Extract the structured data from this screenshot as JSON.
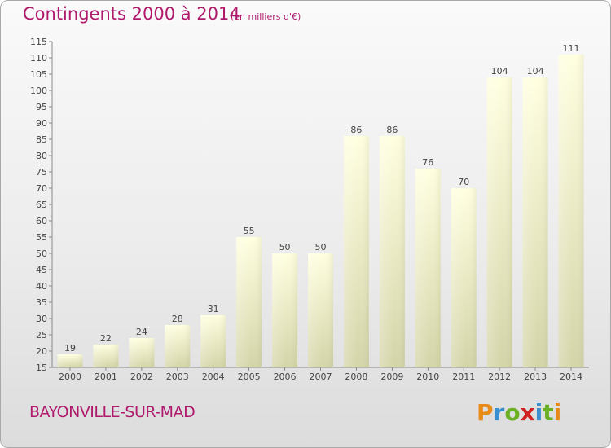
{
  "title": "Contingents 2000 à 2014",
  "subtitle": "(en milliers d'€)",
  "commune": "BAYONVILLE-SUR-MAD",
  "logo": {
    "letters": [
      "P",
      "r",
      "o",
      "x",
      "i",
      "t",
      "i"
    ],
    "colors": [
      "#e88a1a",
      "#3a8fd0",
      "#6ab023",
      "#d02020",
      "#3a8fd0",
      "#6ab023",
      "#e88a1a"
    ]
  },
  "colors": {
    "accent": "#b01a6d",
    "bar_top": "#ffffe0",
    "bar_bottom": "#d4d4a8"
  },
  "chart_data": {
    "type": "bar",
    "categories": [
      "2000",
      "2001",
      "2002",
      "2003",
      "2004",
      "2005",
      "2006",
      "2007",
      "2008",
      "2009",
      "2010",
      "2011",
      "2012",
      "2013",
      "2014"
    ],
    "values": [
      19,
      22,
      24,
      28,
      31,
      55,
      50,
      50,
      86,
      86,
      76,
      70,
      104,
      104,
      111
    ],
    "ylim": [
      15,
      115
    ],
    "yticks": [
      15,
      20,
      25,
      30,
      35,
      40,
      45,
      50,
      55,
      60,
      65,
      70,
      75,
      80,
      85,
      90,
      95,
      100,
      105,
      110,
      115
    ],
    "grid": false,
    "xlabel": "",
    "ylabel": ""
  }
}
